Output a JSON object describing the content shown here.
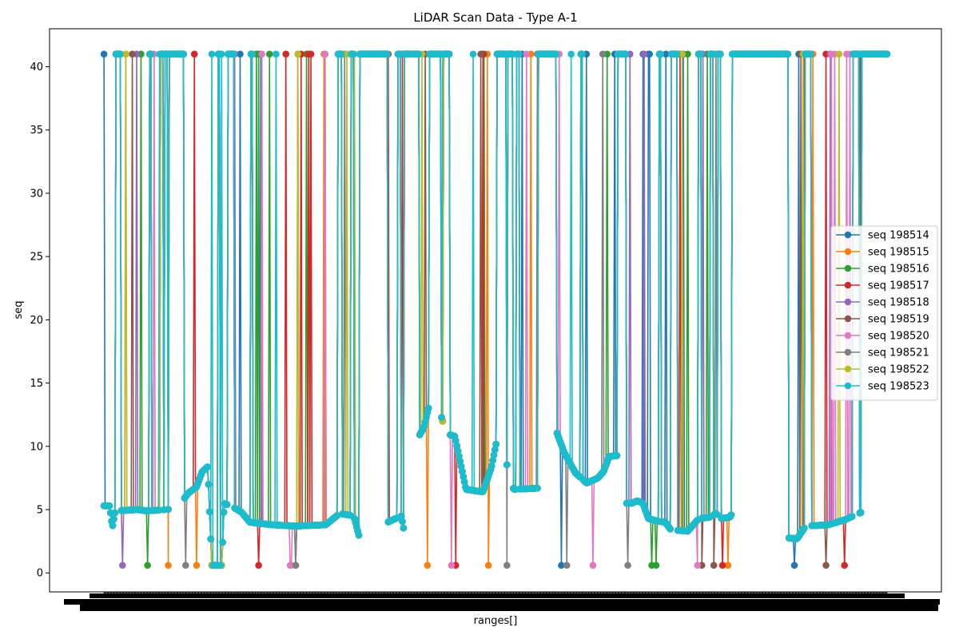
{
  "chart_data": {
    "type": "line",
    "title": "LiDAR Scan Data - Type A-1",
    "xlabel": "ranges[]",
    "ylabel": "seq",
    "ylim": [
      -1.5,
      43
    ],
    "yticks": [
      0,
      5,
      10,
      15,
      20,
      25,
      30,
      35,
      40
    ],
    "n_points": 720,
    "x_tick_labels_overlapping": true,
    "grid": false,
    "legend_position": "center-right",
    "marker": "circle",
    "series": [
      {
        "name": "seq 198514",
        "color": "#1f77b4"
      },
      {
        "name": "seq 198515",
        "color": "#ff7f0e"
      },
      {
        "name": "seq 198516",
        "color": "#2ca02c"
      },
      {
        "name": "seq 198517",
        "color": "#d62728"
      },
      {
        "name": "seq 198518",
        "color": "#9467bd"
      },
      {
        "name": "seq 198519",
        "color": "#8c564b"
      },
      {
        "name": "seq 198520",
        "color": "#e377c2"
      },
      {
        "name": "seq 198521",
        "color": "#7f7f7f"
      },
      {
        "name": "seq 198522",
        "color": "#bcbd22"
      },
      {
        "name": "seq 198523",
        "color": "#17becf"
      }
    ],
    "base_profile": [
      [
        0,
        5.3
      ],
      [
        10,
        5.3
      ],
      [
        15,
        3.6
      ],
      [
        20,
        4.9
      ],
      [
        60,
        5.0
      ],
      [
        75,
        4.9
      ],
      [
        110,
        5.0
      ],
      [
        130,
        5.1
      ],
      [
        150,
        6.3
      ],
      [
        165,
        6.8
      ],
      [
        175,
        8.0
      ],
      [
        185,
        8.4
      ],
      [
        192,
        0.6
      ],
      [
        210,
        0.6
      ],
      [
        214,
        5.5
      ],
      [
        230,
        5.2
      ],
      [
        245,
        4.8
      ],
      [
        260,
        4.0
      ],
      [
        300,
        3.8
      ],
      [
        340,
        3.7
      ],
      [
        395,
        3.8
      ],
      [
        420,
        4.7
      ],
      [
        445,
        4.5
      ],
      [
        468,
        0.6
      ],
      [
        500,
        0.6
      ],
      [
        505,
        4.0
      ],
      [
        530,
        4.5
      ],
      [
        540,
        1.8
      ],
      [
        550,
        9.5
      ],
      [
        560,
        10.7
      ],
      [
        570,
        11.5
      ],
      [
        578,
        13.0
      ],
      [
        590,
        14.0
      ],
      [
        600,
        12.5
      ],
      [
        610,
        11.0
      ],
      [
        625,
        10.8
      ],
      [
        645,
        6.6
      ],
      [
        660,
        6.5
      ],
      [
        675,
        6.4
      ],
      [
        690,
        8.3
      ],
      [
        700,
        10.5
      ],
      [
        715,
        9.0
      ],
      [
        730,
        6.6
      ],
      [
        775,
        6.7
      ],
      [
        790,
        16.0
      ],
      [
        805,
        11.3
      ],
      [
        820,
        9.5
      ],
      [
        840,
        7.9
      ],
      [
        860,
        7.1
      ],
      [
        880,
        7.5
      ],
      [
        890,
        8.0
      ],
      [
        900,
        9.2
      ],
      [
        920,
        9.3
      ],
      [
        925,
        5.5
      ],
      [
        940,
        5.5
      ],
      [
        950,
        5.7
      ],
      [
        960,
        5.5
      ],
      [
        970,
        4.3
      ],
      [
        985,
        4.1
      ],
      [
        1000,
        4.0
      ],
      [
        1010,
        3.4
      ],
      [
        1040,
        3.3
      ],
      [
        1060,
        4.3
      ],
      [
        1080,
        4.4
      ],
      [
        1090,
        4.7
      ],
      [
        1100,
        4.3
      ],
      [
        1115,
        4.4
      ],
      [
        1130,
        5.5
      ],
      [
        1155,
        0.5
      ],
      [
        1185,
        0.5
      ],
      [
        1190,
        3.0
      ],
      [
        1210,
        2.8
      ],
      [
        1235,
        2.7
      ],
      [
        1250,
        3.7
      ],
      [
        1290,
        3.8
      ],
      [
        1320,
        4.2
      ],
      [
        1355,
        4.9
      ],
      [
        1370,
        5.2
      ],
      [
        1385,
        6.0
      ],
      [
        1395,
        5.3
      ]
    ],
    "spike_ranges": [
      [
        22,
        30
      ],
      [
        82,
        84
      ],
      [
        100,
        104
      ],
      [
        108,
        112
      ],
      [
        116,
        142
      ],
      [
        203,
        205
      ],
      [
        222,
        230
      ],
      [
        262,
        264
      ],
      [
        418,
        422
      ],
      [
        440,
        445
      ],
      [
        455,
        505
      ],
      [
        523,
        527
      ],
      [
        536,
        560
      ],
      [
        580,
        600
      ],
      [
        605,
        610
      ],
      [
        612,
        615
      ],
      [
        700,
        715
      ],
      [
        720,
        728
      ],
      [
        736,
        740
      ],
      [
        775,
        805
      ],
      [
        850,
        852
      ],
      [
        915,
        930
      ],
      [
        990,
        992
      ],
      [
        1010,
        1020
      ],
      [
        1060,
        1064
      ],
      [
        1080,
        1084
      ],
      [
        1095,
        1099
      ],
      [
        1120,
        1218
      ],
      [
        1250,
        1260
      ],
      [
        1335,
        1345
      ],
      [
        1350,
        1395
      ]
    ],
    "spike_value": 41.0
  }
}
